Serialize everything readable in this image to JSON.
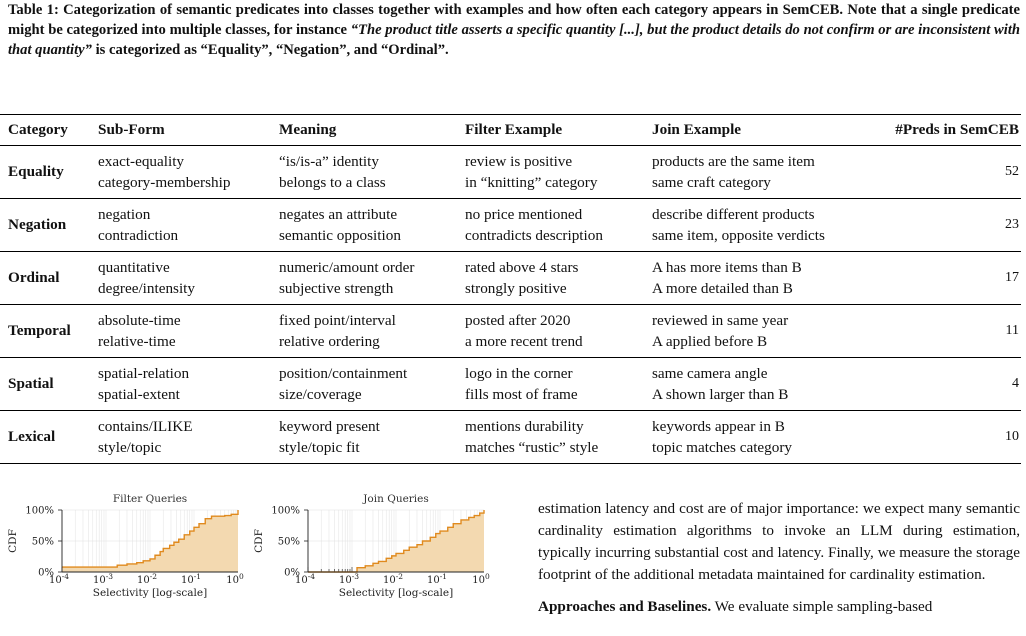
{
  "caption": {
    "lead": "Table 1: Categorization of semantic predicates into classes together with examples and how often each category appears in SemCEB. Note that a single predicate might be categorized into multiple classes, for instance ",
    "quote": "“The product title asserts a specific quantity [...], but the product details do not confirm or are inconsistent with that quantity”",
    "tail": " is categorized as “Equality”, “Negation”, and “Ordinal”."
  },
  "table": {
    "headers": [
      "Category",
      "Sub-Form",
      "Meaning",
      "Filter Example",
      "Join Example",
      "#Preds in SemCEB"
    ],
    "rows": [
      {
        "category": "Equality",
        "sub": [
          "exact-equality",
          "category-membership"
        ],
        "meaning": [
          "“is/is-a” identity",
          "belongs to a class"
        ],
        "filter": [
          "review is positive",
          "in “knitting” category"
        ],
        "join": [
          "products are the same item",
          "same craft category"
        ],
        "count": "52"
      },
      {
        "category": "Negation",
        "sub": [
          "negation",
          "contradiction"
        ],
        "meaning": [
          "negates an attribute",
          "semantic opposition"
        ],
        "filter": [
          "no price mentioned",
          "contradicts description"
        ],
        "join": [
          "describe different products",
          "same item, opposite verdicts"
        ],
        "count": "23"
      },
      {
        "category": "Ordinal",
        "sub": [
          "quantitative",
          "degree/intensity"
        ],
        "meaning": [
          "numeric/amount order",
          "subjective strength"
        ],
        "filter": [
          "rated above 4 stars",
          "strongly positive"
        ],
        "join": [
          "A has more items than B",
          "A more detailed than B"
        ],
        "count": "17"
      },
      {
        "category": "Temporal",
        "sub": [
          "absolute-time",
          "relative-time"
        ],
        "meaning": [
          "fixed point/interval",
          "relative ordering"
        ],
        "filter": [
          "posted after 2020",
          "a more recent trend"
        ],
        "join": [
          "reviewed in same year",
          "A applied before B"
        ],
        "count": "11"
      },
      {
        "category": "Spatial",
        "sub": [
          "spatial-relation",
          "spatial-extent"
        ],
        "meaning": [
          "position/containment",
          "size/coverage"
        ],
        "filter": [
          "logo in the corner",
          "fills most of frame"
        ],
        "join": [
          "same camera angle",
          "A shown larger than B"
        ],
        "count": "4"
      },
      {
        "category": "Lexical",
        "sub": [
          "contains/ILIKE",
          "style/topic"
        ],
        "meaning": [
          "keyword present",
          "style/topic fit"
        ],
        "filter": [
          "mentions durability",
          "matches “rustic” style"
        ],
        "join": [
          "keywords appear in B",
          "topic matches category"
        ],
        "count": "10"
      }
    ]
  },
  "chart_data": [
    {
      "type": "area",
      "title": "Filter Queries",
      "xlabel": "Selectivity [log-scale]",
      "ylabel": "CDF",
      "xscale": "log",
      "xlim": [
        0.0001,
        1
      ],
      "ylim": [
        0,
        1
      ],
      "xticks": [
        "10^-4",
        "10^-3",
        "10^-2",
        "10^-1",
        "10^0"
      ],
      "yticks": [
        "0%",
        "50%",
        "100%"
      ],
      "grid": true,
      "color": "#E08A1E",
      "fill": "#F3D9B0",
      "x": [
        0.0001,
        0.0012,
        0.0018,
        0.003,
        0.005,
        0.007,
        0.01,
        0.013,
        0.017,
        0.02,
        0.028,
        0.035,
        0.045,
        0.06,
        0.08,
        0.1,
        0.13,
        0.18,
        0.25,
        0.35,
        0.5,
        0.7,
        1.0
      ],
      "y": [
        0.08,
        0.08,
        0.11,
        0.13,
        0.15,
        0.18,
        0.21,
        0.27,
        0.33,
        0.38,
        0.43,
        0.48,
        0.53,
        0.6,
        0.66,
        0.72,
        0.78,
        0.86,
        0.9,
        0.9,
        0.91,
        0.93,
        1.0
      ]
    },
    {
      "type": "area",
      "title": "Join Queries",
      "xlabel": "Selectivity [log-scale]",
      "ylabel": "CDF",
      "xscale": "log",
      "xlim": [
        0.0001,
        1
      ],
      "ylim": [
        0,
        1
      ],
      "xticks": [
        "10^-4",
        "10^-3",
        "10^-2",
        "10^-1",
        "10^0"
      ],
      "yticks": [
        "0%",
        "50%",
        "100%"
      ],
      "grid": true,
      "color": "#E08A1E",
      "fill": "#F3D9B0",
      "x": [
        0.0001,
        0.001,
        0.0013,
        0.002,
        0.003,
        0.004,
        0.006,
        0.008,
        0.01,
        0.015,
        0.02,
        0.03,
        0.04,
        0.06,
        0.08,
        0.1,
        0.15,
        0.2,
        0.3,
        0.45,
        0.6,
        0.8,
        1.0
      ],
      "y": [
        0.0,
        0.0,
        0.07,
        0.1,
        0.14,
        0.17,
        0.22,
        0.26,
        0.3,
        0.35,
        0.4,
        0.44,
        0.5,
        0.56,
        0.62,
        0.66,
        0.72,
        0.78,
        0.84,
        0.88,
        0.91,
        0.95,
        1.0
      ]
    }
  ],
  "body": {
    "para1": "estimation latency and cost are of major importance: we expect many semantic cardinality estimation algorithms to invoke an LLM during estimation, typically incurring substantial cost and latency. Finally, we measure the storage footprint of the additional metadata maintained for cardinality estimation.",
    "para2_head": "Approaches and Baselines.",
    "para2_text": " We evaluate simple sampling-based"
  }
}
